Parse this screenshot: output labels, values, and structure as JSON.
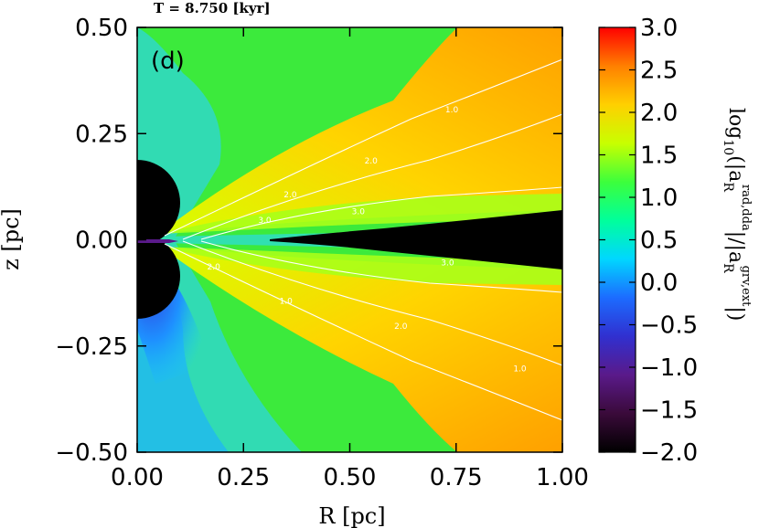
{
  "chart_data": {
    "type": "heatmap",
    "time_label": "T =     8.750 [kyr]",
    "panel_label": "(d)",
    "xlabel": "R [pc]",
    "ylabel": "z [pc]",
    "xlim": [
      0.0,
      1.0
    ],
    "ylim": [
      -0.5,
      0.5
    ],
    "x_ticks": [
      "0.00",
      "0.25",
      "0.50",
      "0.75",
      "1.00"
    ],
    "x_tick_values": [
      0.0,
      0.25,
      0.5,
      0.75,
      1.0
    ],
    "y_ticks": [
      "0.50",
      "0.25",
      "0.00",
      "−0.25",
      "−0.50"
    ],
    "y_tick_values": [
      0.5,
      0.25,
      0.0,
      -0.25,
      -0.5
    ],
    "colorbar": {
      "label_prefix": "log",
      "label_sub": "10",
      "label_main": "(|a",
      "label_sub_R1": "R",
      "label_sup_1": "rad,dda",
      "label_mid": "|/|a",
      "label_sub_R2": "R",
      "label_sup_2": "grv,ext",
      "label_end": "|)",
      "vmin": -2.0,
      "vmax": 3.0,
      "ticks": [
        "3.0",
        "2.5",
        "2.0",
        "1.5",
        "1.0",
        "0.5",
        "0.0",
        "−0.5",
        "−1.0",
        "−1.5",
        "−2.0"
      ],
      "tick_values": [
        3.0,
        2.5,
        2.0,
        1.5,
        1.0,
        0.5,
        0.0,
        -0.5,
        -1.0,
        -1.5,
        -2.0
      ],
      "colormap": [
        "#000000",
        "#3a0a3a",
        "#5a1a8a",
        "#3030d0",
        "#1c6cff",
        "#00d7ff",
        "#00ff9c",
        "#3cff3c",
        "#c8ff00",
        "#ffd000",
        "#ff8000",
        "#ff0000"
      ]
    },
    "contour_levels": [
      {
        "value": 1.0,
        "label": "1.0"
      },
      {
        "value": 2.0,
        "label": "2.0"
      },
      {
        "value": 3.0,
        "label": "3.0"
      }
    ],
    "regions": {
      "background_value": 1.3,
      "wing_value": 2.4,
      "inner_cone_value": 1.7,
      "mid_value": 0.2,
      "low_value": -0.7,
      "core_value": -2.0
    }
  }
}
